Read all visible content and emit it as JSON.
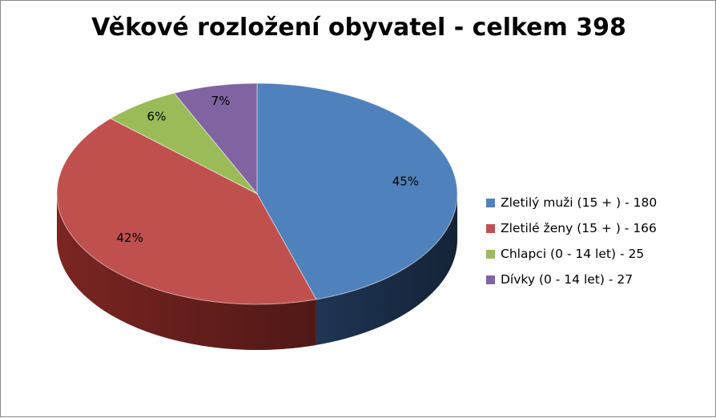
{
  "chart_data": {
    "type": "pie",
    "title": "Věkové rozložení obyvatel - celkem 398",
    "slices": [
      {
        "label": "Zletilý muži (15 + ) - 180",
        "value": 180,
        "percent_label": "45%",
        "color": "#4F81BD",
        "side_color": "#1F3553"
      },
      {
        "label": "Zletilé ženy (15 + ) - 166",
        "value": 166,
        "percent_label": "42%",
        "color": "#C0504D",
        "side_color": "#7A2522"
      },
      {
        "label": "Chlapci (0 - 14 let) - 25",
        "value": 25,
        "percent_label": "6%",
        "color": "#9BBB59",
        "side_color": "#5E7332"
      },
      {
        "label": "Dívky (0 - 14 let) - 27",
        "value": 27,
        "percent_label": "7%",
        "color": "#8064A2",
        "side_color": "#4A3863"
      }
    ],
    "legend_position": "right",
    "three_d": true
  }
}
